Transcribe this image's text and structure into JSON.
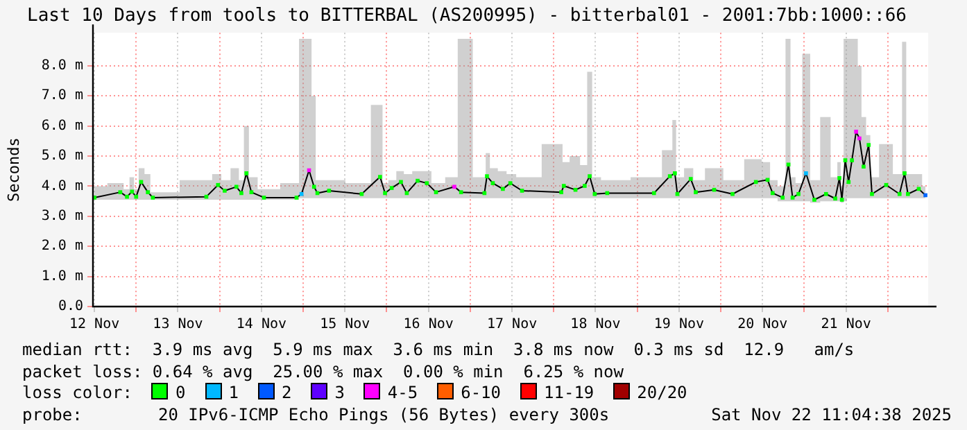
{
  "chart_data": {
    "type": "line",
    "title": "Last 10 Days from tools to BITTERBAL (AS200995) - bitterbal01 - 2001:7bb:1000::66",
    "ylabel": "Seconds",
    "xlim": [
      "2025-11-12T11:35",
      "2025-11-22T11:35"
    ],
    "xticks": [
      {
        "value": "2025-11-12T12:00",
        "label": "12 Nov"
      },
      {
        "value": "2025-11-13T00:00",
        "label": null
      },
      {
        "value": "2025-11-13T12:00",
        "label": "13 Nov"
      },
      {
        "value": "2025-11-14T00:00",
        "label": null
      },
      {
        "value": "2025-11-14T12:00",
        "label": "14 Nov"
      },
      {
        "value": "2025-11-15T00:00",
        "label": null
      },
      {
        "value": "2025-11-15T12:00",
        "label": "15 Nov"
      },
      {
        "value": "2025-11-16T00:00",
        "label": null
      },
      {
        "value": "2025-11-16T12:00",
        "label": "16 Nov"
      },
      {
        "value": "2025-11-17T00:00",
        "label": null
      },
      {
        "value": "2025-11-17T12:00",
        "label": "17 Nov"
      },
      {
        "value": "2025-11-18T00:00",
        "label": null
      },
      {
        "value": "2025-11-18T12:00",
        "label": "18 Nov"
      },
      {
        "value": "2025-11-19T00:00",
        "label": null
      },
      {
        "value": "2025-11-19T12:00",
        "label": "19 Nov"
      },
      {
        "value": "2025-11-20T00:00",
        "label": null
      },
      {
        "value": "2025-11-20T12:00",
        "label": "20 Nov"
      },
      {
        "value": "2025-11-21T00:00",
        "label": null
      },
      {
        "value": "2025-11-21T12:00",
        "label": "21 Nov"
      },
      {
        "value": "2025-11-22T00:00",
        "label": null
      }
    ],
    "ylim": [
      0,
      9.1
    ],
    "yticks": [
      {
        "value": 0,
        "label": "0.0"
      },
      {
        "value": 1,
        "label": "1.0 m"
      },
      {
        "value": 2,
        "label": "2.0 m"
      },
      {
        "value": 3,
        "label": "3.0 m"
      },
      {
        "value": 4,
        "label": "4.0 m"
      },
      {
        "value": 5,
        "label": "5.0 m"
      },
      {
        "value": 6,
        "label": "6.0 m"
      },
      {
        "value": 7,
        "label": "7.0 m"
      },
      {
        "value": 8,
        "label": "8.0 m"
      }
    ],
    "grid": true,
    "legend": false,
    "marker": "square",
    "line_style": "solid",
    "series": [
      {
        "color": "#000000",
        "x": [
          "2025-11-12T12:00",
          "2025-11-12T19:26",
          "2025-11-12T21:22",
          "2025-11-12T22:48",
          "2025-11-13T00:00",
          "2025-11-13T01:26",
          "2025-11-13T03:22",
          "2025-11-13T04:48",
          "2025-11-13T20:10",
          "2025-11-13T23:31",
          "2025-11-14T01:26",
          "2025-11-14T04:48",
          "2025-11-14T06:14",
          "2025-11-14T07:41",
          "2025-11-14T09:07",
          "2025-11-14T12:43",
          "2025-11-14T22:05",
          "2025-11-14T23:31",
          "2025-11-15T01:41",
          "2025-11-15T03:07",
          "2025-11-15T04:05",
          "2025-11-15T07:26",
          "2025-11-15T16:48",
          "2025-11-15T22:05",
          "2025-11-15T23:31",
          "2025-11-16T01:26",
          "2025-11-16T04:05",
          "2025-11-16T05:46",
          "2025-11-16T08:53",
          "2025-11-16T11:31",
          "2025-11-16T14:10",
          "2025-11-16T19:26",
          "2025-11-16T21:22",
          "2025-11-17T04:05",
          "2025-11-17T04:48",
          "2025-11-17T06:29",
          "2025-11-17T09:22",
          "2025-11-17T11:31",
          "2025-11-17T14:53",
          "2025-11-18T02:10",
          "2025-11-18T02:53",
          "2025-11-18T06:14",
          "2025-11-18T08:53",
          "2025-11-18T10:19",
          "2025-11-18T11:46",
          "2025-11-18T15:22",
          "2025-11-19T04:48",
          "2025-11-19T09:22",
          "2025-11-19T10:48",
          "2025-11-19T11:31",
          "2025-11-19T15:22",
          "2025-11-19T16:48",
          "2025-11-19T22:05",
          "2025-11-20T03:22",
          "2025-11-20T10:05",
          "2025-11-20T13:26",
          "2025-11-20T14:53",
          "2025-11-20T17:46",
          "2025-11-20T19:26",
          "2025-11-20T20:38",
          "2025-11-20T22:19",
          "2025-11-21T00:29",
          "2025-11-21T02:53",
          "2025-11-21T06:14",
          "2025-11-21T08:53",
          "2025-11-21T10:05",
          "2025-11-21T10:48",
          "2025-11-21T11:46",
          "2025-11-21T12:43",
          "2025-11-21T13:41",
          "2025-11-21T14:53",
          "2025-11-21T15:50",
          "2025-11-21T17:02",
          "2025-11-21T18:29",
          "2025-11-21T19:26",
          "2025-11-21T23:31",
          "2025-11-22T03:22",
          "2025-11-22T04:48",
          "2025-11-22T05:46",
          "2025-11-22T08:53",
          "2025-11-22T10:48"
        ],
        "values": [
          3.62,
          3.8,
          3.65,
          3.82,
          3.65,
          4.14,
          3.8,
          3.62,
          3.65,
          4.04,
          3.85,
          3.98,
          3.77,
          4.43,
          3.8,
          3.62,
          3.62,
          3.74,
          4.53,
          3.98,
          3.77,
          3.85,
          3.74,
          4.31,
          3.77,
          3.94,
          4.14,
          3.77,
          4.18,
          4.1,
          3.8,
          3.98,
          3.8,
          3.77,
          4.33,
          4.1,
          3.91,
          4.1,
          3.85,
          3.8,
          4.01,
          3.88,
          4.01,
          4.33,
          3.74,
          3.77,
          3.77,
          4.33,
          4.43,
          3.74,
          4.24,
          3.8,
          3.88,
          3.74,
          4.14,
          4.21,
          3.77,
          3.62,
          4.72,
          3.62,
          3.74,
          4.43,
          3.55,
          3.74,
          3.59,
          4.27,
          3.55,
          4.86,
          4.14,
          4.86,
          5.81,
          5.59,
          4.65,
          5.37,
          3.74,
          4.04,
          3.74,
          4.43,
          3.74,
          3.91,
          3.7
        ],
        "upper": [
          4.0,
          4.1,
          3.9,
          4.3,
          3.9,
          4.6,
          4.4,
          3.8,
          4.2,
          4.4,
          4.2,
          4.6,
          4.2,
          6.0,
          4.3,
          3.9,
          4.1,
          8.9,
          8.9,
          7.0,
          4.2,
          4.2,
          4.1,
          6.7,
          4.1,
          4.2,
          4.5,
          4.4,
          4.5,
          4.5,
          4.1,
          4.3,
          8.9,
          4.3,
          5.1,
          4.6,
          4.5,
          4.4,
          4.3,
          5.4,
          4.8,
          5.0,
          4.7,
          7.8,
          4.3,
          4.2,
          4.3,
          5.2,
          6.2,
          4.3,
          4.6,
          4.2,
          4.6,
          4.2,
          4.9,
          4.8,
          4.2,
          4.0,
          8.9,
          4.3,
          4.1,
          8.4,
          4.2,
          6.3,
          4.3,
          4.8,
          4.0,
          8.9,
          8.9,
          8.9,
          8.9,
          8.0,
          6.3,
          5.7,
          4.3,
          5.4,
          4.4,
          8.8,
          4.4,
          4.4,
          4.0
        ],
        "lower": [
          3.55,
          3.55,
          3.55,
          3.55,
          3.55,
          3.55,
          3.55,
          3.55,
          3.55,
          3.55,
          3.55,
          3.55,
          3.55,
          3.55,
          3.55,
          3.55,
          3.55,
          3.6,
          3.6,
          3.6,
          3.6,
          3.6,
          3.6,
          3.6,
          3.6,
          3.6,
          3.6,
          3.6,
          3.6,
          3.6,
          3.6,
          3.6,
          3.6,
          3.6,
          3.6,
          3.6,
          3.6,
          3.6,
          3.6,
          3.6,
          3.6,
          3.6,
          3.6,
          3.6,
          3.6,
          3.6,
          3.6,
          3.6,
          3.6,
          3.6,
          3.6,
          3.6,
          3.6,
          3.6,
          3.6,
          3.6,
          3.6,
          3.5,
          3.5,
          3.5,
          3.5,
          3.5,
          3.45,
          3.5,
          3.5,
          3.5,
          3.45,
          3.5,
          3.6,
          3.6,
          3.6,
          3.6,
          3.6,
          3.6,
          3.6,
          3.6,
          3.6,
          3.6,
          3.6,
          3.6,
          3.6
        ],
        "colors": [
          "#00ff00",
          "#00ff00",
          "#00ff00",
          "#00ff00",
          "#00ff00",
          "#00ff00",
          "#00ff00",
          "#00ff00",
          "#00ff00",
          "#00ff00",
          "#00ff00",
          "#00ff00",
          "#00ff00",
          "#00ff00",
          "#00ff00",
          "#00ff00",
          "#00ff00",
          "#00bbff",
          "#ff00ff",
          "#00ff00",
          "#00ff00",
          "#00ff00",
          "#00ff00",
          "#00ff00",
          "#00ff00",
          "#00ff00",
          "#00ff00",
          "#00ff00",
          "#00ff00",
          "#00ff00",
          "#00ff00",
          "#ff00ff",
          "#00ff00",
          "#00ff00",
          "#00ff00",
          "#00ff00",
          "#00ff00",
          "#00ff00",
          "#00ff00",
          "#00ff00",
          "#00ff00",
          "#00ff00",
          "#00ff00",
          "#00ff00",
          "#00ff00",
          "#00ff00",
          "#00ff00",
          "#00ff00",
          "#00ff00",
          "#00ff00",
          "#00ff00",
          "#00ff00",
          "#00ff00",
          "#00ff00",
          "#00ff00",
          "#00ff00",
          "#00ff00",
          "#00ff00",
          "#00ff00",
          "#00ff00",
          "#00ff00",
          "#00bbff",
          "#00ff00",
          "#00ff00",
          "#00ff00",
          "#00ff00",
          "#00ff00",
          "#00ff00",
          "#00ff00",
          "#00ff00",
          "#ff00ff",
          "#ff00ff",
          "#00ff00",
          "#00ff00",
          "#00ff00",
          "#00ff00",
          "#00ff00",
          "#00ff00",
          "#00ff00",
          "#00ff00",
          "#0066ff"
        ]
      }
    ],
    "annotations": [
      "median rtt:  3.9 ms avg  5.9 ms max  3.6 ms min  3.8 ms now  0.3 ms sd  12.9   am/s",
      "packet loss: 0.64 % avg  25.00 % max  0.00 % min  6.25 % now",
      "loss color:",
      "0",
      "1",
      "2",
      "3",
      "4-5",
      "6-10",
      "11-19",
      "20/20",
      "probe:",
      "20 IPv6-ICMP Echo Pings (56 Bytes) every 300s",
      "Sat Nov 22 11:04:38 2025"
    ]
  }
}
